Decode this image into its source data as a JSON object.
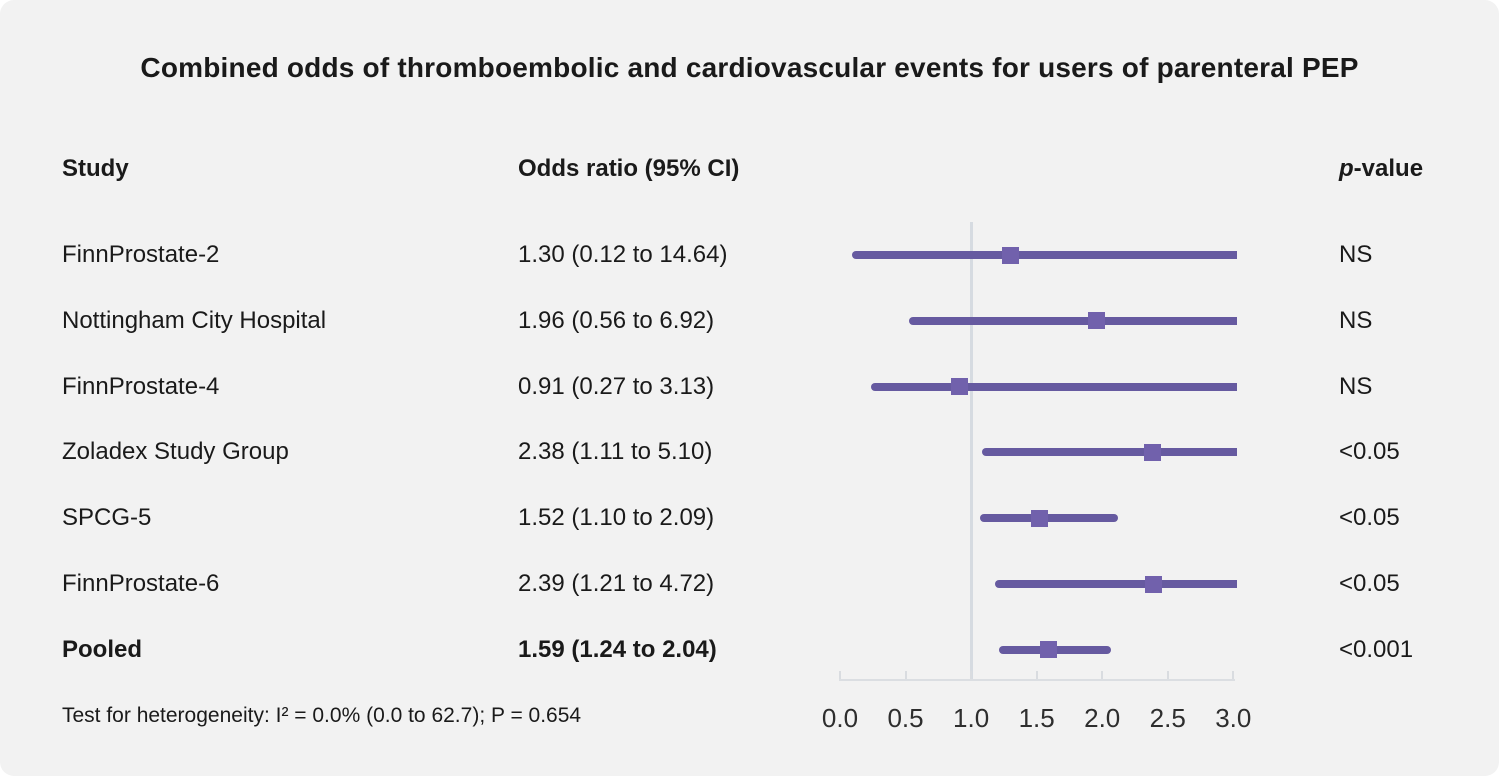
{
  "title": "Combined odds of thromboembolic and cardiovascular events for users of parenteral PEP",
  "columns": {
    "study": "Study",
    "odds_ratio": "Odds ratio (95% CI)",
    "p_value_italic": "p",
    "p_value_rest": "-value"
  },
  "footer": {
    "heterogeneity": "Test for heterogeneity: I² = 0.0% (0.0 to 62.7); P = 0.654"
  },
  "chart_data": {
    "type": "forest",
    "title": "Combined odds of thromboembolic and cardiovascular events for users of parenteral PEP",
    "x_axis": {
      "ticks": [
        "0.0",
        "0.5",
        "1.0",
        "1.5",
        "2.0",
        "2.5",
        "3.0"
      ],
      "tick_values": [
        0.0,
        0.5,
        1.0,
        1.5,
        2.0,
        2.5,
        3.0
      ],
      "xlim": [
        0.0,
        3.0
      ],
      "reference_line": 1.0
    },
    "rows": [
      {
        "study": "FinnProstate-2",
        "or_text": "1.30 (0.12 to 14.64)",
        "est": 1.3,
        "lo": 0.12,
        "hi": 14.64,
        "p": "NS",
        "bold": false
      },
      {
        "study": "Nottingham City Hospital",
        "or_text": "1.96 (0.56 to 6.92)",
        "est": 1.96,
        "lo": 0.56,
        "hi": 6.92,
        "p": "NS",
        "bold": false
      },
      {
        "study": "FinnProstate-4",
        "or_text": "0.91 (0.27 to 3.13)",
        "est": 0.91,
        "lo": 0.27,
        "hi": 3.13,
        "p": "NS",
        "bold": false
      },
      {
        "study": "Zoladex Study Group",
        "or_text": "2.38 (1.11 to 5.10)",
        "est": 2.38,
        "lo": 1.11,
        "hi": 5.1,
        "p": "<0.05",
        "bold": false
      },
      {
        "study": "SPCG-5",
        "or_text": "1.52 (1.10 to 2.09)",
        "est": 1.52,
        "lo": 1.1,
        "hi": 2.09,
        "p": "<0.05",
        "bold": false
      },
      {
        "study": "FinnProstate-6",
        "or_text": "2.39 (1.21 to 4.72)",
        "est": 2.39,
        "lo": 1.21,
        "hi": 4.72,
        "p": "<0.05",
        "bold": false
      },
      {
        "study": "Pooled",
        "or_text": "1.59 (1.24 to 2.04)",
        "est": 1.59,
        "lo": 1.24,
        "hi": 2.04,
        "p": "<0.001",
        "bold": true
      }
    ],
    "heterogeneity_note": "Test for heterogeneity: I² = 0.0% (0.0 to 62.7); P = 0.654"
  },
  "colors": {
    "background": "#f2f2f2",
    "ci_line": "#665AA0",
    "marker": "#7161AC",
    "reference_line": "#D6DBE1",
    "axis_line": "#DBDEE2",
    "tick": "#D9DCE0",
    "text": "#1a1a1a",
    "tick_label": "#2e2e2e"
  }
}
